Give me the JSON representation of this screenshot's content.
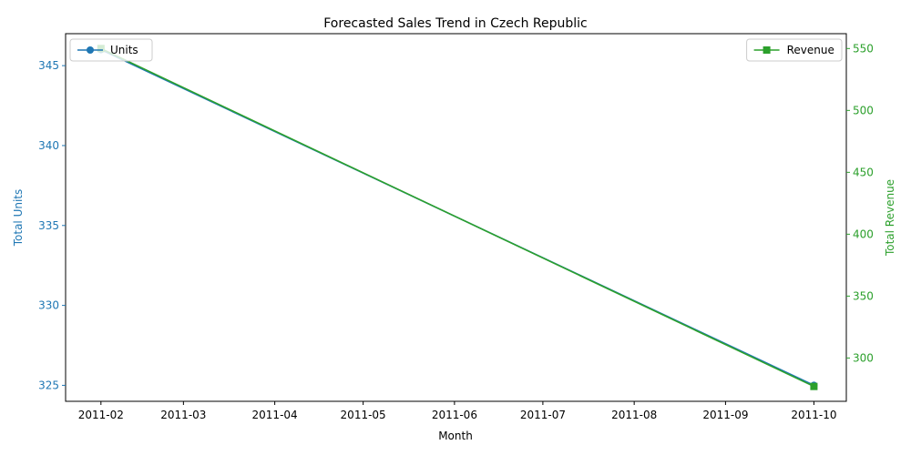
{
  "chart_data": {
    "type": "line",
    "title": "Forecasted Sales Trend in Czech Republic",
    "xlabel": "Month",
    "ylabel_left": "Total Units",
    "ylabel_right": "Total Revenue",
    "x_ticks": [
      "2011-02",
      "2011-03",
      "2011-04",
      "2011-05",
      "2011-06",
      "2011-07",
      "2011-08",
      "2011-09",
      "2011-10"
    ],
    "y_left_ticks": [
      325,
      330,
      335,
      340,
      345
    ],
    "y_right_ticks": [
      300,
      350,
      400,
      450,
      500,
      550
    ],
    "x_range": [
      "2011-01-20",
      "2011-10-12"
    ],
    "y_left_range": [
      324,
      347
    ],
    "y_right_range": [
      265,
      562
    ],
    "series": [
      {
        "name": "Units",
        "axis": "left",
        "marker": "circle",
        "color": "#1f77b4",
        "x": [
          "2011-02-01",
          "2011-10-01"
        ],
        "values": [
          346,
          325
        ]
      },
      {
        "name": "Revenue",
        "axis": "right",
        "marker": "square",
        "color": "#2ca02c",
        "x": [
          "2011-02-01",
          "2011-10-01"
        ],
        "values": [
          550,
          277
        ]
      }
    ],
    "legends": [
      {
        "placement": "top-left",
        "entries": [
          "Units"
        ]
      },
      {
        "placement": "top-right",
        "entries": [
          "Revenue"
        ]
      }
    ],
    "colors": {
      "left_axis": "#1f77b4",
      "right_axis": "#2ca02c",
      "axes": "#000000"
    },
    "grid": false
  }
}
